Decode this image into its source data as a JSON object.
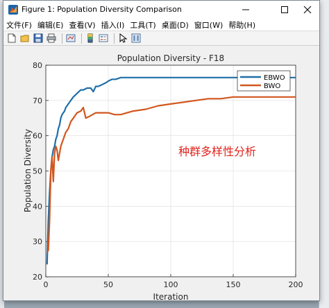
{
  "window": {
    "title": "Figure 1: Population Diversity Comparison"
  },
  "menu": {
    "items": [
      "文件(F)",
      "编辑(E)",
      "查看(V)",
      "插入(I)",
      "工具(T)",
      "桌面(D)",
      "窗口(W)",
      "帮助(H)"
    ]
  },
  "toolbar": {
    "icons": [
      "new-figure-icon",
      "open-file-icon",
      "save-icon",
      "print-icon",
      "link-plot-icon",
      "insert-colorbar-icon",
      "insert-legend-icon",
      "edit-plot-icon",
      "plot-tools-icon"
    ]
  },
  "colors": {
    "ebwo": "#1f6fa8",
    "bwo": "#d2561e",
    "annotation": "#e0231c"
  },
  "chart_data": {
    "type": "line",
    "title": "Population Diversity - F18",
    "xlabel": "Iteration",
    "ylabel": "Population Diversity",
    "xlim": [
      0,
      200
    ],
    "ylim": [
      20,
      80
    ],
    "xticks": [
      0,
      50,
      100,
      150,
      200
    ],
    "yticks": [
      20,
      30,
      40,
      50,
      60,
      70,
      80
    ],
    "grid": true,
    "legend_position": "top-right",
    "annotation": "种群多样性分析",
    "series": [
      {
        "name": "EBWO",
        "x": [
          1,
          2,
          3,
          4,
          5,
          6,
          7,
          8,
          9,
          10,
          11,
          12,
          13,
          14,
          15,
          16,
          18,
          20,
          22,
          25,
          28,
          30,
          33,
          36,
          38,
          40,
          42,
          45,
          48,
          50,
          53,
          56,
          60,
          65,
          70,
          80,
          90,
          100,
          110,
          120,
          130,
          140,
          150,
          160,
          170,
          180,
          190,
          200
        ],
        "y": [
          23.5,
          36,
          44,
          50,
          54,
          56,
          57,
          59,
          60,
          62,
          63,
          65,
          66,
          66.5,
          67,
          68,
          69,
          70,
          71,
          72,
          73,
          73,
          73.5,
          73.5,
          72.5,
          74,
          74,
          74.5,
          75,
          75.5,
          76,
          76,
          76.5,
          76.5,
          76.5,
          76.5,
          76.5,
          76.5,
          76.5,
          76.5,
          76.5,
          76.5,
          76.5,
          76.5,
          76.5,
          76.5,
          76.5,
          76.5
        ]
      },
      {
        "name": "BWO",
        "x": [
          1,
          2,
          3,
          4,
          5,
          6,
          7,
          8,
          9,
          10,
          11,
          12,
          14,
          16,
          18,
          20,
          22,
          25,
          28,
          30,
          32,
          35,
          40,
          45,
          50,
          55,
          60,
          65,
          70,
          80,
          90,
          100,
          110,
          120,
          130,
          140,
          150,
          160,
          170,
          180,
          190,
          200
        ],
        "y": [
          27,
          27.5,
          36,
          50,
          54,
          47,
          55,
          57,
          56,
          53,
          55,
          57,
          59,
          61,
          62,
          64,
          65,
          66.5,
          67,
          68,
          65,
          65.5,
          66.5,
          66.5,
          66.5,
          66,
          66,
          66.5,
          67,
          67.5,
          68.5,
          69,
          69.5,
          70,
          70.5,
          70.5,
          71,
          71,
          71,
          71,
          71,
          71
        ]
      }
    ]
  }
}
